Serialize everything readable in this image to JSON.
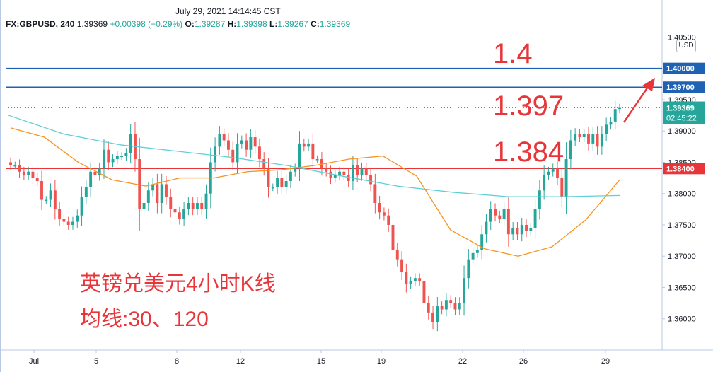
{
  "header": {
    "timestamp": "July 29, 2021 14:14:45 CST",
    "symbol": "FX:GBPUSD, 240",
    "last": "1.39369",
    "change": "+0.00398 (+0.29%)",
    "o_label": "O:",
    "o": "1.39287",
    "h_label": "H:",
    "h": "1.39398",
    "l_label": "L:",
    "l": "1.39267",
    "c_label": "C:",
    "c": "1.39369"
  },
  "currency": "USD",
  "annotations": {
    "level_1": "1.4",
    "level_2": "1.397",
    "level_3": "1.384",
    "title_cn": "英镑兑美元4小时K线",
    "ma_cn": "均线:30、120"
  },
  "colors": {
    "up": "#26a69a",
    "down": "#ef5350",
    "ma30": "#f7931e",
    "ma120": "#5fcfd6",
    "blue_line": "#1e62b4",
    "red_line": "#e8353a",
    "accent": "#e8353a"
  },
  "chart_data": {
    "type": "candlestick",
    "ylim": [
      1.355,
      1.4055
    ],
    "y_ticks": [
      "1.36000",
      "1.36500",
      "1.37000",
      "1.37500",
      "1.38000",
      "1.38500",
      "1.39000",
      "1.39500",
      "1.40500"
    ],
    "x_ticks": [
      "Jul",
      "5",
      "8",
      "12",
      "15",
      "19",
      "22",
      "26",
      "29"
    ],
    "horizontal_lines": [
      {
        "value": 1.4,
        "label": "1.40000",
        "color": "#1e62b4"
      },
      {
        "value": 1.397,
        "label": "1.39700",
        "color": "#1e62b4"
      },
      {
        "value": 1.384,
        "label": "1.38400",
        "color": "#e8353a"
      }
    ],
    "current_price": {
      "value": 1.39369,
      "label": "1.39369",
      "countdown": "02:45:22"
    },
    "candles_close": [
      1.3845,
      1.3845,
      1.3835,
      1.383,
      1.3835,
      1.3825,
      1.382,
      1.379,
      1.379,
      1.3805,
      1.3775,
      1.376,
      1.3755,
      1.375,
      1.3755,
      1.3765,
      1.3795,
      1.381,
      1.3835,
      1.383,
      1.384,
      1.387,
      1.385,
      1.3855,
      1.386,
      1.386,
      1.3865,
      1.3895,
      1.3855,
      1.3775,
      1.3785,
      1.3805,
      1.3815,
      1.3785,
      1.3815,
      1.3795,
      1.3775,
      1.377,
      1.376,
      1.3775,
      1.3785,
      1.3775,
      1.3785,
      1.3775,
      1.38,
      1.385,
      1.3875,
      1.3895,
      1.3885,
      1.387,
      1.385,
      1.388,
      1.3885,
      1.387,
      1.389,
      1.3875,
      1.3855,
      1.384,
      1.381,
      1.381,
      1.3825,
      1.381,
      1.382,
      1.3835,
      1.384,
      1.388,
      1.3875,
      1.388,
      1.3855,
      1.3855,
      1.384,
      1.3835,
      1.3825,
      1.383,
      1.3835,
      1.383,
      1.382,
      1.3845,
      1.383,
      1.384,
      1.383,
      1.3815,
      1.3785,
      1.377,
      1.3765,
      1.375,
      1.371,
      1.3695,
      1.3675,
      1.3655,
      1.366,
      1.3665,
      1.366,
      1.3625,
      1.361,
      1.3595,
      1.362,
      1.3615,
      1.363,
      1.3625,
      1.3615,
      1.3625,
      1.3665,
      1.3695,
      1.3705,
      1.371,
      1.3735,
      1.3755,
      1.3775,
      1.3765,
      1.376,
      1.3775,
      1.3735,
      1.3745,
      1.3735,
      1.375,
      1.374,
      1.3745,
      1.3775,
      1.3805,
      1.383,
      1.3835,
      1.384,
      1.3825,
      1.3795,
      1.3855,
      1.3885,
      1.3895,
      1.389,
      1.3895,
      1.388,
      1.3895,
      1.3875,
      1.3895,
      1.391,
      1.3915,
      1.3935,
      1.39369
    ],
    "ma30_values": [
      1.3905,
      1.389,
      1.385,
      1.3822,
      1.3812,
      1.3825,
      1.3825,
      1.3835,
      1.3838,
      1.3845,
      1.3855,
      1.386,
      1.3828,
      1.3742,
      1.3712,
      1.37,
      1.3715,
      1.3758,
      1.3822
    ],
    "ma30_dates": [
      "Jul",
      "5",
      "8",
      "12",
      "15",
      "19",
      "22",
      "26",
      "29"
    ],
    "ma120_values": [
      1.3925,
      1.3895,
      1.3878,
      1.3868,
      1.3858,
      1.3845,
      1.3828,
      1.3812,
      1.3802,
      1.3795,
      1.3795,
      1.3797
    ],
    "ma120_dates": [
      "Jul",
      "5",
      "8",
      "12",
      "15",
      "19",
      "22",
      "26",
      "29"
    ]
  }
}
